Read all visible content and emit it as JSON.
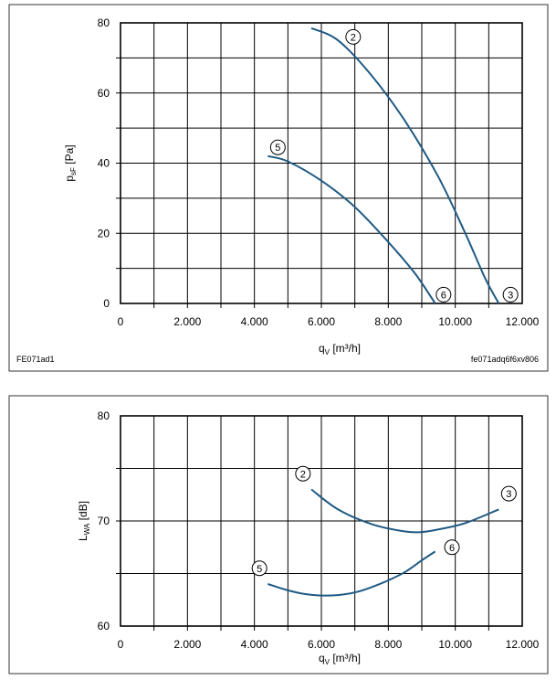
{
  "chart_data": [
    {
      "type": "line",
      "xlabel": "qV [m³/h]",
      "ylabel": "psF [Pa]",
      "xlim": [
        0,
        12000
      ],
      "ylim": [
        0,
        80
      ],
      "x_ticks": [
        "0",
        "2.000",
        "4.000",
        "6.000",
        "8.000",
        "10.000",
        "12.000"
      ],
      "y_ticks": [
        "0",
        "20",
        "40",
        "60",
        "80"
      ],
      "footer_left": "FE071ad1",
      "footer_right": "fe071adq6f6xv806",
      "grid": true,
      "series": [
        {
          "name": "2",
          "color": "#1f5a84",
          "x": [
            5700,
            6500,
            7500,
            8500,
            9500,
            10300,
            10900,
            11300
          ],
          "y": [
            78.5,
            75,
            65,
            52,
            36,
            20,
            7,
            0
          ]
        },
        {
          "name": "5",
          "color": "#1f5a84",
          "x": [
            4400,
            5000,
            6000,
            7000,
            8000,
            8800,
            9400
          ],
          "y": [
            42,
            40.5,
            35,
            27.5,
            17.5,
            8.5,
            0
          ]
        }
      ],
      "markers": [
        {
          "label": "2",
          "x": 6950,
          "y": 76
        },
        {
          "label": "5",
          "x": 4700,
          "y": 44.5
        },
        {
          "label": "6",
          "x": 9650,
          "y": 2.5
        },
        {
          "label": "3",
          "x": 11650,
          "y": 2.5
        }
      ]
    },
    {
      "type": "line",
      "xlabel": "qV [m³/h]",
      "ylabel": "LWA [dB]",
      "xlim": [
        0,
        12000
      ],
      "ylim": [
        60,
        80
      ],
      "x_ticks": [
        "0",
        "2.000",
        "4.000",
        "6.000",
        "8.000",
        "10.000",
        "12.000"
      ],
      "y_ticks": [
        "60",
        "70",
        "80"
      ],
      "grid": true,
      "series": [
        {
          "name": "2-3",
          "color": "#1f5a84",
          "x": [
            5700,
            6500,
            7500,
            8500,
            9000,
            9500,
            10300,
            11300
          ],
          "y": [
            73,
            71.1,
            69.7,
            69.0,
            68.95,
            69.2,
            69.8,
            71.1
          ]
        },
        {
          "name": "5-6",
          "color": "#1f5a84",
          "x": [
            4400,
            5000,
            5500,
            6000,
            6500,
            7000,
            7500,
            8000,
            8500,
            9000,
            9400
          ],
          "y": [
            64,
            63.4,
            63.05,
            62.9,
            62.95,
            63.2,
            63.7,
            64.35,
            65.15,
            66.25,
            67.1
          ]
        }
      ],
      "markers": [
        {
          "label": "2",
          "x": 5450,
          "y": 74.5
        },
        {
          "label": "3",
          "x": 11600,
          "y": 72.6
        },
        {
          "label": "5",
          "x": 4150,
          "y": 65.5
        },
        {
          "label": "6",
          "x": 9900,
          "y": 67.5
        }
      ]
    }
  ]
}
